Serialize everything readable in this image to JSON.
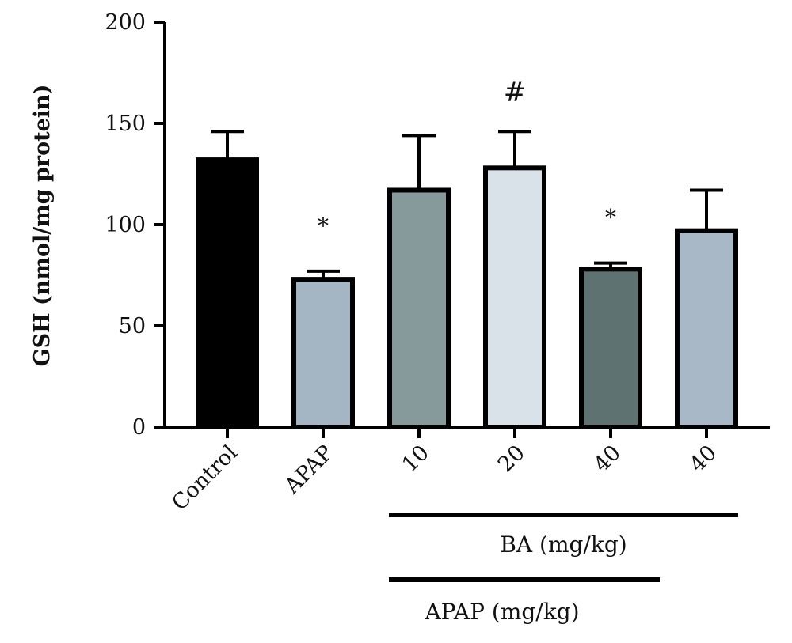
{
  "chart_data": {
    "type": "bar",
    "ylabel": "GSH (nmol/mg protein)",
    "ylim": [
      0,
      200
    ],
    "yticks": [
      0,
      50,
      100,
      150,
      200
    ],
    "categories": [
      "Control",
      "APAP",
      "10",
      "20",
      "40",
      "40"
    ],
    "values": [
      132,
      73,
      117,
      128,
      78,
      97
    ],
    "errors": [
      14,
      4,
      27,
      18,
      3,
      20
    ],
    "colors": [
      "#000000",
      "#a4b5c4",
      "#869a9c",
      "#d9e2e8",
      "#5f7272",
      "#a8b8c6"
    ],
    "annotations": [
      "",
      "*",
      "",
      "#",
      "*",
      ""
    ],
    "groups": [
      {
        "label": "BA (mg/kg)",
        "from_index": 2,
        "to_index": 5
      },
      {
        "label": "APAP (mg/kg)",
        "from_index": 2,
        "to_index": 4
      }
    ],
    "grid": false,
    "legend": "none"
  }
}
